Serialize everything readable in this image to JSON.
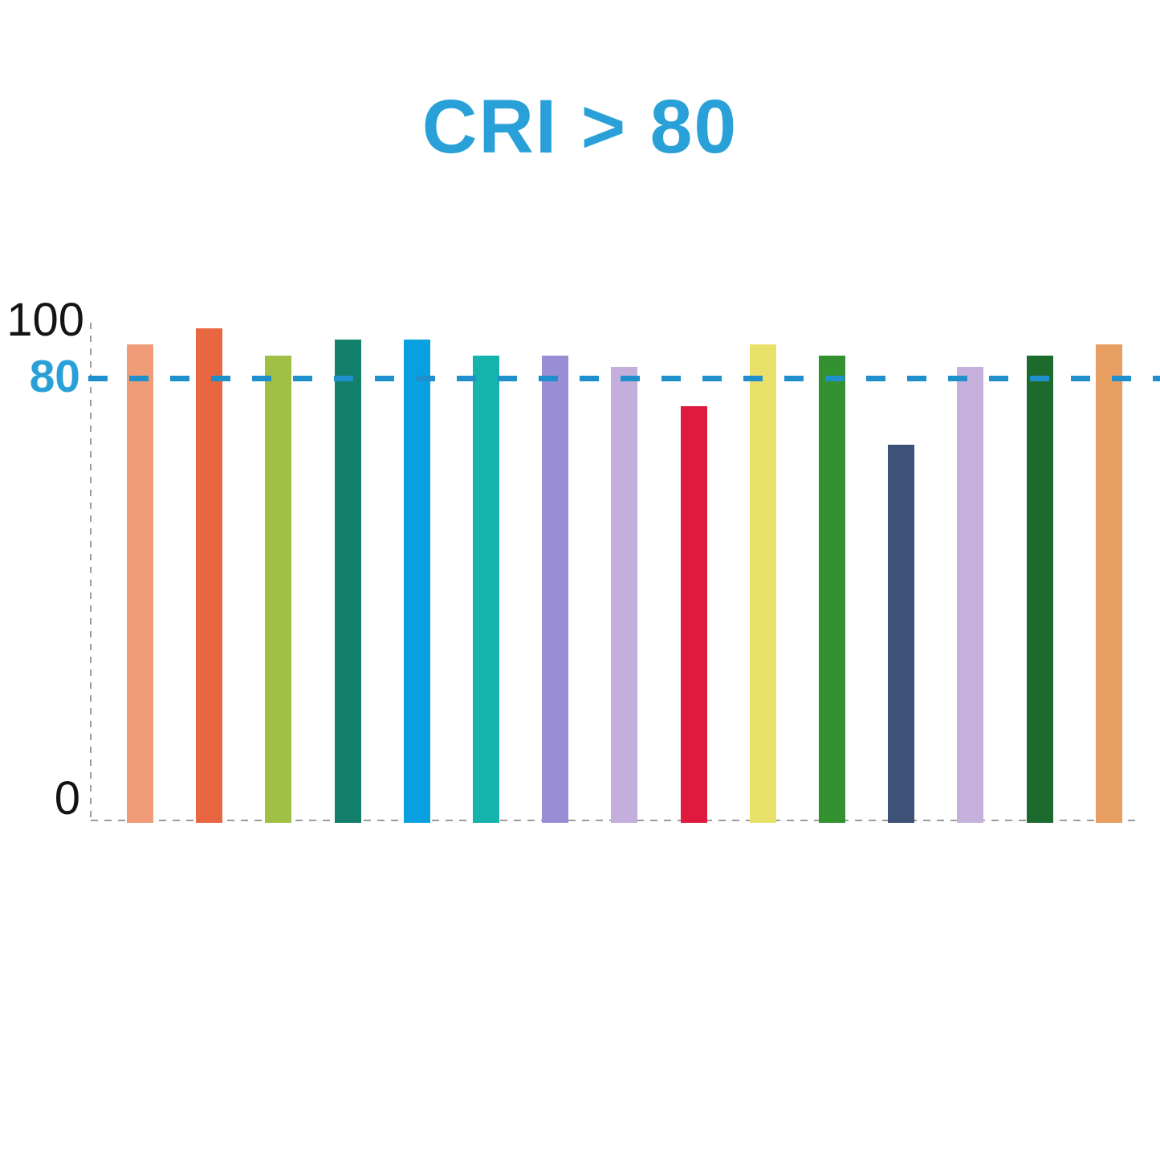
{
  "title": {
    "text": "CRI > 80",
    "color": "#29A1D8"
  },
  "y_axis": {
    "tick_100": "100",
    "tick_80": "80",
    "tick_0": "0",
    "color": "#9B9B9B"
  },
  "threshold": {
    "value": 80,
    "line_color": "#1F90CC"
  },
  "chart_data": {
    "type": "bar",
    "title": "CRI > 80",
    "xlabel": "",
    "ylabel": "",
    "ylim": [
      0,
      100
    ],
    "ytick_labels": [
      "100",
      "80",
      "0"
    ],
    "threshold_line": 80,
    "grid": false,
    "legend": "none",
    "x_tick_labels": [],
    "bars": [
      {
        "value": 86,
        "color": "#F09C78"
      },
      {
        "value": 89,
        "color": "#E96740"
      },
      {
        "value": 84,
        "color": "#A0C045"
      },
      {
        "value": 87,
        "color": "#12806B"
      },
      {
        "value": 87,
        "color": "#09A0E2"
      },
      {
        "value": 84,
        "color": "#16B3AD"
      },
      {
        "value": 84,
        "color": "#998ED6"
      },
      {
        "value": 82,
        "color": "#C4AFDC"
      },
      {
        "value": 75,
        "color": "#E01A3E"
      },
      {
        "value": 86,
        "color": "#E8E068"
      },
      {
        "value": 84,
        "color": "#33912F"
      },
      {
        "value": 68,
        "color": "#3D5277"
      },
      {
        "value": 82,
        "color": "#C6B1DD"
      },
      {
        "value": 84,
        "color": "#1D6B2C"
      },
      {
        "value": 86,
        "color": "#E99E61"
      }
    ]
  }
}
